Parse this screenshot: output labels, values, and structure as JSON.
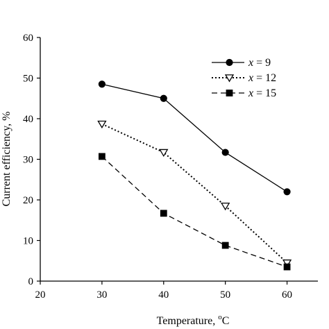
{
  "chart_data": {
    "type": "line",
    "xlabel": "Temperature, ",
    "xlabel_unit": "C",
    "xlabel_super": "o",
    "ylabel": "Current efficiency, %",
    "x": [
      30,
      40,
      50,
      60
    ],
    "xlim": [
      20,
      65
    ],
    "ylim": [
      0,
      60
    ],
    "xticks": [
      20,
      30,
      40,
      50,
      60
    ],
    "yticks": [
      0,
      10,
      20,
      30,
      40,
      50,
      60
    ],
    "grid": false,
    "legend_position": "top-right",
    "series": [
      {
        "name_var": "x",
        "name_rest": " = 9",
        "values": [
          48.5,
          45.0,
          31.7,
          22.0
        ],
        "line": "solid",
        "marker": "filled-circle"
      },
      {
        "name_var": "x",
        "name_rest": " = 12",
        "values": [
          38.7,
          31.7,
          18.5,
          4.5
        ],
        "line": "dotted",
        "marker": "open-triangle-down"
      },
      {
        "name_var": "x",
        "name_rest": " = 15",
        "values": [
          30.7,
          16.7,
          8.8,
          3.5
        ],
        "line": "dashed",
        "marker": "filled-square"
      }
    ]
  }
}
